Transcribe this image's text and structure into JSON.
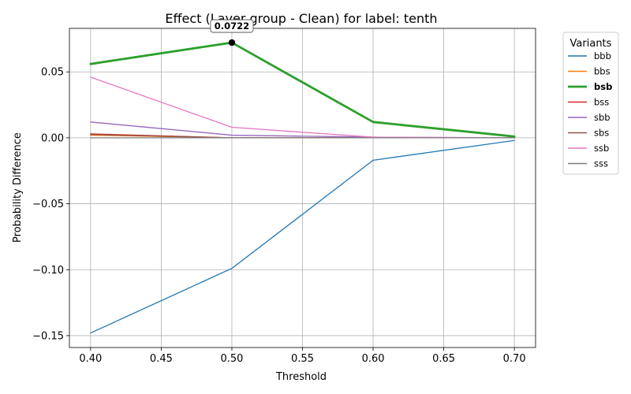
{
  "chart_data": {
    "type": "line",
    "title": "Effect (Layer group - Clean) for label: tenth",
    "xlabel": "Threshold",
    "ylabel": "Probability Difference",
    "x": [
      0.4,
      0.5,
      0.6,
      0.7
    ],
    "xlim": [
      0.385,
      0.715
    ],
    "ylim": [
      -0.159,
      0.083
    ],
    "xticks": [
      0.4,
      0.45,
      0.5,
      0.55,
      0.6,
      0.65,
      0.7
    ],
    "xtick_labels": [
      "0.40",
      "0.45",
      "0.50",
      "0.55",
      "0.60",
      "0.65",
      "0.70"
    ],
    "yticks": [
      -0.15,
      -0.1,
      -0.05,
      0.0,
      0.05
    ],
    "ytick_labels": [
      "−0.15",
      "−0.10",
      "−0.05",
      "0.00",
      "0.05"
    ],
    "grid": true,
    "legend": {
      "title": "Variants",
      "placement": "outside-right"
    },
    "highlight_series": "bsb",
    "annotation": {
      "series": "bsb",
      "x": 0.5,
      "y": 0.0722,
      "text": "0.0722"
    },
    "series": [
      {
        "name": "bbb",
        "color": "#1f77b4",
        "values": [
          -0.148,
          -0.099,
          -0.017,
          -0.002
        ]
      },
      {
        "name": "bbs",
        "color": "#ff7f0e",
        "values": [
          0.002,
          0.0,
          0.0,
          0.0
        ]
      },
      {
        "name": "bsb",
        "color": "#2ca02c",
        "values": [
          0.056,
          0.0722,
          0.012,
          0.001
        ]
      },
      {
        "name": "bss",
        "color": "#d62728",
        "values": [
          0.003,
          0.0,
          0.0,
          0.0
        ]
      },
      {
        "name": "sbb",
        "color": "#9467bd",
        "values": [
          0.012,
          0.002,
          0.0005,
          0.0
        ]
      },
      {
        "name": "sbs",
        "color": "#8c564b",
        "values": [
          0.0025,
          0.0,
          0.0,
          0.0
        ]
      },
      {
        "name": "ssb",
        "color": "#e377c2",
        "values": [
          0.046,
          0.008,
          0.0005,
          0.0
        ]
      },
      {
        "name": "sss",
        "color": "#7f7f7f",
        "values": [
          0.0,
          0.0,
          0.0,
          0.0
        ]
      }
    ]
  }
}
